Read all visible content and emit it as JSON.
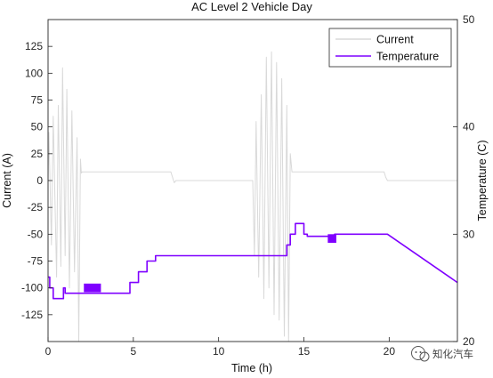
{
  "chart_data": {
    "type": "line",
    "title": "AC Level 2 Vehicle Day",
    "xlabel": "Time (h)",
    "ylabel_left": "Current (A)",
    "ylabel_right": "Temperature (C)",
    "xlim": [
      0,
      24
    ],
    "ylim_left": [
      -150,
      150
    ],
    "ylim_right": [
      20,
      50
    ],
    "xticks": [
      0,
      5,
      10,
      15,
      20
    ],
    "yticks_left": [
      -125,
      -100,
      -75,
      -50,
      -25,
      0,
      25,
      50,
      75,
      100,
      125
    ],
    "yticks_right": [
      20,
      30,
      40,
      50
    ],
    "legend_position": "top-right",
    "grid": false,
    "series": [
      {
        "name": "Current",
        "axis": "left",
        "color": "#d9d9d9",
        "x": [
          0.0,
          0.05,
          0.2,
          0.3,
          0.5,
          0.6,
          0.75,
          0.85,
          1.0,
          1.1,
          1.25,
          1.4,
          1.55,
          1.7,
          1.8,
          1.9,
          1.95,
          2.0,
          2.1,
          7.2,
          7.3,
          7.4,
          7.5,
          12.0,
          12.1,
          12.2,
          12.35,
          12.5,
          12.65,
          12.8,
          12.95,
          13.1,
          13.25,
          13.4,
          13.55,
          13.7,
          13.85,
          14.0,
          14.1,
          14.2,
          14.3,
          14.4,
          19.7,
          19.8,
          19.9,
          24.0
        ],
        "y": [
          0,
          45,
          -60,
          60,
          -90,
          70,
          -80,
          105,
          -70,
          85,
          -100,
          65,
          -85,
          40,
          -150,
          20,
          7,
          8,
          8,
          8,
          3,
          -2,
          0,
          0,
          -70,
          55,
          -90,
          80,
          -110,
          115,
          -100,
          120,
          -125,
          110,
          -130,
          95,
          -145,
          70,
          -150,
          25,
          8,
          8,
          8,
          3,
          0,
          0
        ]
      },
      {
        "name": "Temperature",
        "axis": "right",
        "color": "#7f00ff",
        "x": [
          0.0,
          0.1,
          0.1,
          0.3,
          0.3,
          0.9,
          0.9,
          1.0,
          1.0,
          4.8,
          4.8,
          5.3,
          5.3,
          5.8,
          5.8,
          6.3,
          6.3,
          7.3,
          7.3,
          14.0,
          14.0,
          14.2,
          14.2,
          14.5,
          14.5,
          15.0,
          15.0,
          15.2,
          15.2,
          16.5,
          16.5,
          16.8,
          16.8,
          19.9,
          24.0
        ],
        "y": [
          26.0,
          26.0,
          25.0,
          25.0,
          24.0,
          24.0,
          25.0,
          25.0,
          24.5,
          24.5,
          25.5,
          25.5,
          26.5,
          26.5,
          27.5,
          27.5,
          28.0,
          28.0,
          28.0,
          28.0,
          29.0,
          29.0,
          30.0,
          30.0,
          31.0,
          31.0,
          30.0,
          30.0,
          29.8,
          29.8,
          29.8,
          29.8,
          30.0,
          30.0,
          25.5
        ]
      }
    ],
    "filled_blocks": [
      {
        "x": [
          2.1,
          3.1
        ],
        "y": [
          24.6,
          25.4
        ]
      },
      {
        "x": [
          16.4,
          16.9
        ],
        "y": [
          29.2,
          30.0
        ]
      }
    ]
  },
  "legend": [
    {
      "label": "Current",
      "color": "#d9d9d9"
    },
    {
      "label": "Temperature",
      "color": "#7f00ff"
    }
  ],
  "watermark": {
    "text": "知化汽车",
    "icon": "wechat-icon"
  }
}
